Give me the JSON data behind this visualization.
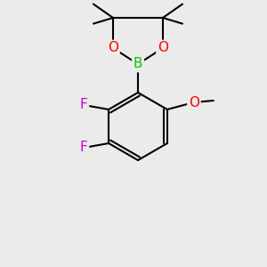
{
  "background_color": "#ebebeb",
  "bond_color": "#000000",
  "bond_width": 1.5,
  "atom_colors": {
    "B": "#00cc00",
    "O": "#ff0000",
    "F": "#cc00cc",
    "C": "#000000"
  },
  "figsize": [
    3.0,
    3.0
  ],
  "dpi": 100
}
